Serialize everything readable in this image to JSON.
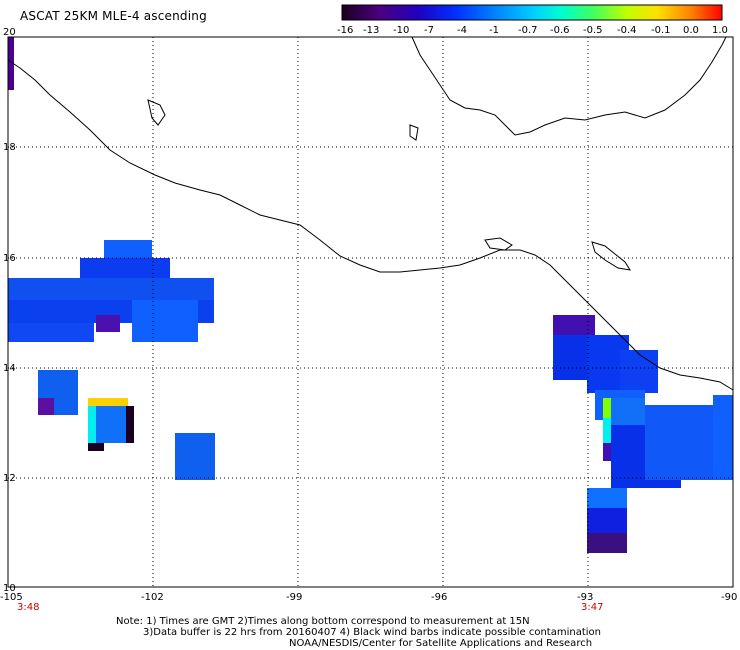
{
  "title": "ASCAT 25KM MLE-4 ascending",
  "colorbar": {
    "labels": [
      "-16",
      "-13",
      "-10",
      "-7",
      "-4",
      "-1",
      "-0.7",
      "-0.6",
      "-0.5",
      "-0.4",
      "-0.1",
      "0.0",
      "1.0"
    ],
    "stops": [
      "#1a0020",
      "#4a0080",
      "#2000c0",
      "#0030ff",
      "#0080ff",
      "#00ccff",
      "#00ffd0",
      "#40ff60",
      "#c0ff00",
      "#ffe000",
      "#ff8000",
      "#ff2000",
      "#ff0000"
    ]
  },
  "latitude_labels": [
    "20",
    "18",
    "16",
    "14",
    "12",
    "10"
  ],
  "longitude_labels": [
    "-105",
    "-102",
    "-99",
    "-96",
    "-93",
    "-90"
  ],
  "time_labels": {
    "left": "3:48",
    "right": "3:47"
  },
  "notes": [
    "Note: 1) Times are GMT 2)Times along bottom correspond to measurement at 15N",
    "3)Data buffer is 22 hrs from 20160407 4) Black wind barbs indicate possible contamination",
    "NOAA/NESDIS/Center for Satellite Applications and Research"
  ]
}
